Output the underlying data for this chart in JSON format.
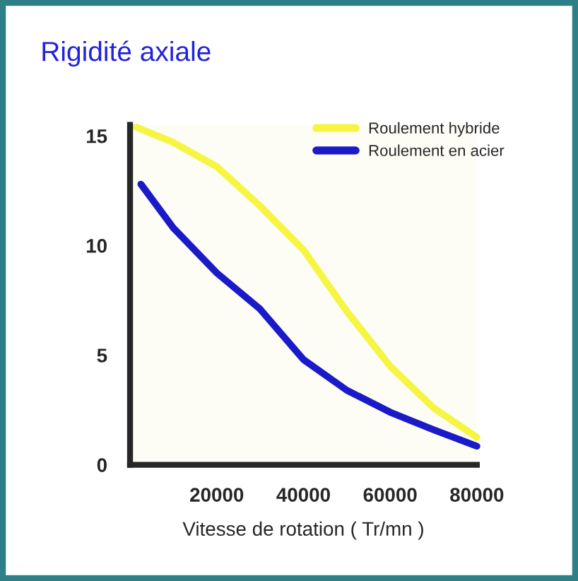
{
  "chart_data": {
    "type": "line",
    "title": "Rigidité axiale",
    "xlabel": "Vitesse de rotation ( Tr/mn )",
    "xlim": [
      0,
      80000
    ],
    "xticks": [
      20000,
      40000,
      60000,
      80000
    ],
    "ylim": [
      0,
      15.5
    ],
    "yticks": [
      0,
      5,
      10,
      15
    ],
    "legend": "top right",
    "grid": false,
    "series": [
      {
        "name": "Roulement hybride",
        "color": "#f5f542",
        "x": [
          1400,
          10000,
          20000,
          30000,
          40000,
          50000,
          60000,
          70000,
          80000
        ],
        "values": [
          15.4,
          14.7,
          13.6,
          11.8,
          9.8,
          7.0,
          4.5,
          2.6,
          1.25
        ]
      },
      {
        "name": "Roulement en acier",
        "color": "#1a1ac8",
        "x": [
          2500,
          10000,
          20000,
          30000,
          40000,
          50000,
          60000,
          70000,
          80000
        ],
        "values": [
          12.8,
          10.8,
          8.75,
          7.1,
          4.8,
          3.4,
          2.4,
          1.6,
          0.85
        ]
      }
    ]
  }
}
